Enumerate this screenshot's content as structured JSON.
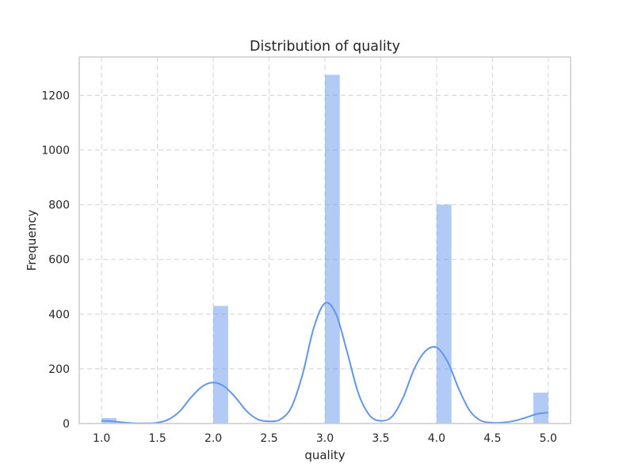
{
  "chart_data": {
    "type": "bar",
    "title": "Distribution of quality",
    "xlabel": "quality",
    "ylabel": "Frequency",
    "xlim": [
      0.8,
      5.2
    ],
    "ylim": [
      0,
      1340
    ],
    "xticks": [
      1.0,
      1.5,
      2.0,
      2.5,
      3.0,
      3.5,
      4.0,
      4.5,
      5.0
    ],
    "xtick_labels": [
      "1.0",
      "1.5",
      "2.0",
      "2.5",
      "3.0",
      "3.5",
      "4.0",
      "4.5",
      "5.0"
    ],
    "yticks": [
      0,
      200,
      400,
      600,
      800,
      1000,
      1200
    ],
    "ytick_labels": [
      "0",
      "200",
      "400",
      "600",
      "800",
      "1000",
      "1200"
    ],
    "grid": true,
    "bin_width": 0.1333,
    "histogram": [
      {
        "x_start": 1.0,
        "value": 20
      },
      {
        "x_start": 2.0,
        "value": 430
      },
      {
        "x_start": 3.0,
        "value": 1275
      },
      {
        "x_start": 4.0,
        "value": 800
      },
      {
        "x_start": 4.8667,
        "value": 113
      }
    ],
    "kde": {
      "x": [
        1.0,
        1.1,
        1.2,
        1.3,
        1.4,
        1.5,
        1.6,
        1.7,
        1.8,
        1.9,
        2.0,
        2.1,
        2.2,
        2.3,
        2.4,
        2.5,
        2.6,
        2.7,
        2.8,
        2.9,
        3.0,
        3.1,
        3.2,
        3.3,
        3.4,
        3.5,
        3.6,
        3.7,
        3.8,
        3.9,
        4.0,
        4.1,
        4.2,
        4.3,
        4.4,
        4.5,
        4.6,
        4.7,
        4.8,
        4.9,
        5.0
      ],
      "y": [
        10,
        8,
        4,
        1,
        1,
        3,
        15,
        45,
        95,
        135,
        150,
        135,
        95,
        45,
        15,
        8,
        15,
        60,
        180,
        350,
        440,
        400,
        260,
        110,
        30,
        10,
        25,
        95,
        200,
        265,
        278,
        225,
        125,
        45,
        10,
        3,
        4,
        10,
        22,
        35,
        40
      ]
    },
    "colors": {
      "bar": "#6495ed",
      "bar_opacity": 0.5,
      "kde_line": "#6495ed",
      "grid": "#d9d9d9",
      "frame": "#cccccc",
      "text": "#262626"
    }
  }
}
